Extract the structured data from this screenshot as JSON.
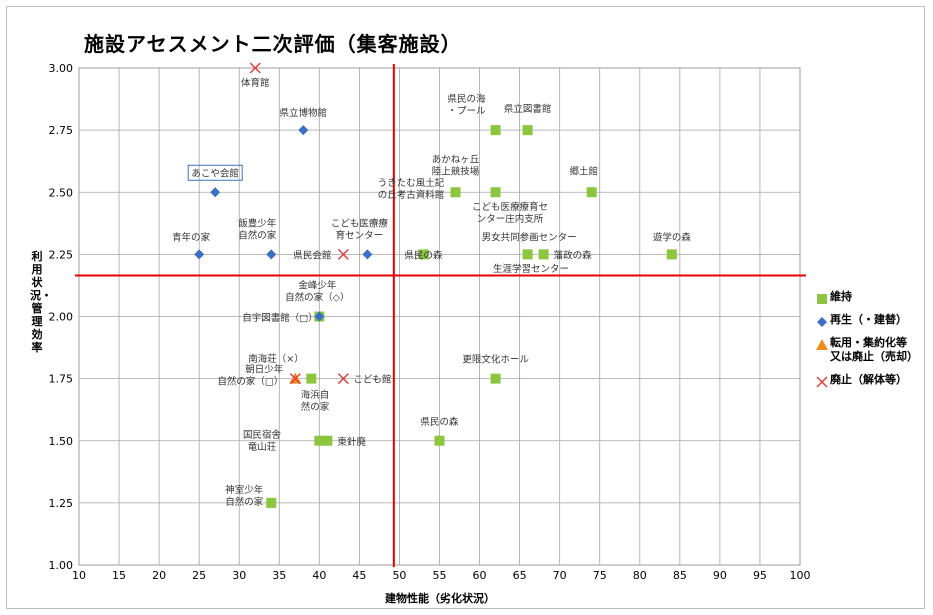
{
  "chart_data": {
    "type": "scatter",
    "title": "施設アセスメント二次評価（集客施設）",
    "xlabel": "建物性能（劣化状況）",
    "ylabel": "利用状況・管理効率",
    "xlim": [
      10,
      100
    ],
    "ylim": [
      1.0,
      3.0
    ],
    "xticks": [
      "10",
      "15",
      "20",
      "25",
      "30",
      "35",
      "40",
      "45",
      "50",
      "55",
      "60",
      "65",
      "70",
      "75",
      "80",
      "85",
      "90",
      "95",
      "100"
    ],
    "yticks": [
      "1.00",
      "1.25",
      "1.50",
      "1.75",
      "2.00",
      "2.25",
      "2.50",
      "2.75",
      "3.00"
    ],
    "grid": true,
    "legend_position": "right",
    "threshold_lines": {
      "x": 49.3,
      "y": 2.165,
      "color": "#e60000"
    },
    "series": [
      {
        "name": "維持",
        "marker": "square",
        "color": "#8cc63f",
        "points": [
          {
            "x": 62,
            "y": 2.75,
            "label": "県民の海\n・プール"
          },
          {
            "x": 66,
            "y": 2.75,
            "label": "県立図書館"
          },
          {
            "x": 57,
            "y": 2.5,
            "label": "あかねヶ丘\n陸上競技場"
          },
          {
            "x": 62,
            "y": 2.5,
            "label": ""
          },
          {
            "x": 74,
            "y": 2.5,
            "label": "郷土館"
          },
          {
            "x": 53,
            "y": 2.25,
            "label": "県民の森"
          },
          {
            "x": 66,
            "y": 2.25,
            "label": "男女共同参画センター"
          },
          {
            "x": 68,
            "y": 2.25,
            "label": "藩政の森"
          },
          {
            "x": 84,
            "y": 2.25,
            "label": "遊学の森"
          },
          {
            "x": 40,
            "y": 2.0,
            "label": ""
          },
          {
            "x": 39,
            "y": 1.75,
            "label": ""
          },
          {
            "x": 62,
            "y": 1.75,
            "label": "更限文化ホール"
          },
          {
            "x": 40,
            "y": 1.5,
            "label": ""
          },
          {
            "x": 41,
            "y": 1.5,
            "label": "東針廃"
          },
          {
            "x": 55,
            "y": 1.5,
            "label": "県民の森"
          },
          {
            "x": 34,
            "y": 1.25,
            "label": "神室少年\n自然の家"
          }
        ]
      },
      {
        "name": "再生（・建替）",
        "marker": "diamond",
        "color": "#3b6fc4",
        "points": [
          {
            "x": 38,
            "y": 2.75,
            "label": "県立博物館"
          },
          {
            "x": 27,
            "y": 2.5,
            "label": "あこや会館"
          },
          {
            "x": 25,
            "y": 2.25,
            "label": "青年の家"
          },
          {
            "x": 34,
            "y": 2.25,
            "label": "飯豊少年\n自然の家"
          },
          {
            "x": 46,
            "y": 2.25,
            "label": "こども医療療\n育センター"
          },
          {
            "x": 40,
            "y": 2.0,
            "label": "金峰少年\n自然の家（◇）"
          }
        ]
      },
      {
        "name": "転用・集約化等\n又は廃止（売却）",
        "marker": "triangle",
        "color": "#f08c1a",
        "points": [
          {
            "x": 37,
            "y": 1.75,
            "label": ""
          }
        ]
      },
      {
        "name": "廃止（解体等）",
        "marker": "x",
        "color": "#e04040",
        "points": [
          {
            "x": 32,
            "y": 3.0,
            "label": "体育館"
          },
          {
            "x": 43,
            "y": 2.25,
            "label": "県民会館"
          },
          {
            "x": 37,
            "y": 1.75,
            "label": "朝日少年\n自然の家（□）"
          },
          {
            "x": 43,
            "y": 1.75,
            "label": "こども館"
          }
        ]
      }
    ],
    "annotations": [
      "うきたむ風土記\nの丘考古資料館",
      "こども医療療育セ\nンター庄内支所",
      "生涯学習センター",
      "自宇図書館（□）",
      "南海荘（×）",
      "海浜自\n然の家",
      "国民宿舎\n竜山荘"
    ]
  }
}
